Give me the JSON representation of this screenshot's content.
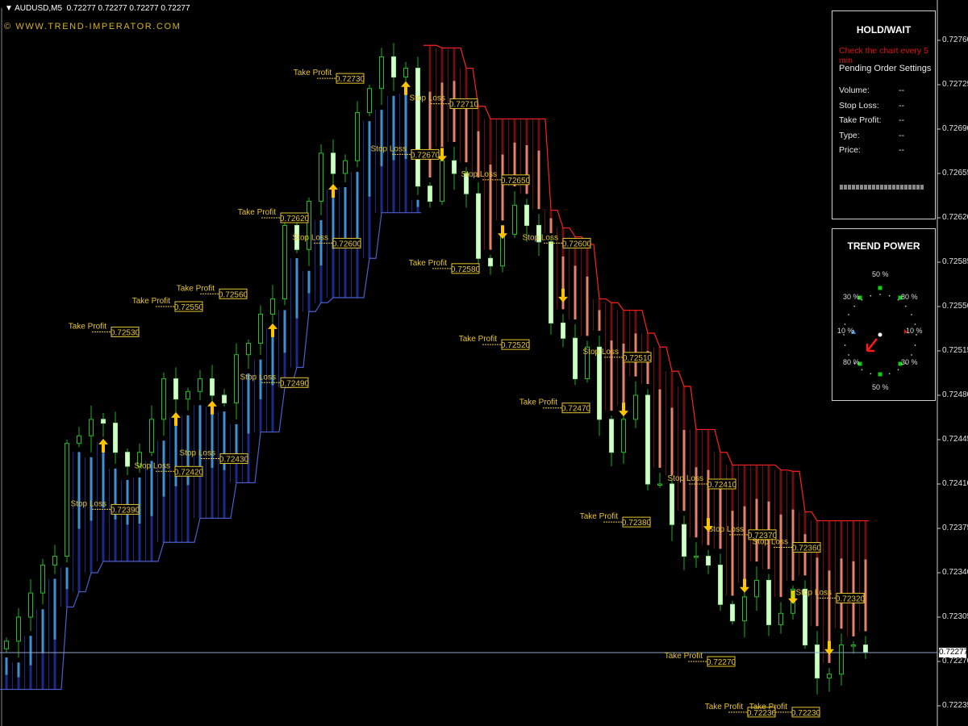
{
  "header": {
    "symbol_line": "AUDUSD,M5  0.72277 0.72277 0.72277 0.72277",
    "watermark": "© WWW.TREND-IMPERATOR.COM"
  },
  "signal_panel": {
    "title": "HOLD/WAIT",
    "notice": "Check the chart every 5 min",
    "section": "Pending Order Settings",
    "fields": [
      {
        "label": "Volume:",
        "value": "--"
      },
      {
        "label": "Stop Loss:",
        "value": "--"
      },
      {
        "label": "Take Profit:",
        "value": "--"
      },
      {
        "label": "Type:",
        "value": "--"
      },
      {
        "label": "Price:",
        "value": "--"
      }
    ],
    "notice_color": "#e01010"
  },
  "trend_power": {
    "title": "TREND POWER",
    "labels": [
      "50 %",
      "80 %",
      "10 %",
      "30 %",
      "50 %",
      "80 %",
      "10 %",
      "30 %"
    ],
    "direction": "down-left",
    "arrow_color": "#ff1a1a"
  },
  "price_axis": {
    "labels": [
      "0.72760",
      "0.72725",
      "0.72690",
      "0.72655",
      "0.72620",
      "0.72585",
      "0.72550",
      "0.72515",
      "0.72480",
      "0.72445",
      "0.72410",
      "0.72375",
      "0.72340",
      "0.72305",
      "0.72270",
      "0.72235"
    ],
    "current_price": "0.72277"
  },
  "chart_data": {
    "type": "candlestick",
    "symbol": "AUDUSD",
    "timeframe": "M5",
    "ylim": [
      0.7222,
      0.7277
    ],
    "close": [
      0.72286,
      0.72305,
      0.72324,
      0.72346,
      0.72353,
      0.72442,
      0.72448,
      0.72461,
      0.72458,
      0.72435,
      0.72424,
      0.72435,
      0.72461,
      0.72493,
      0.72477,
      0.72483,
      0.72493,
      0.7248,
      0.72474,
      0.72512,
      0.72521,
      0.72544,
      0.72556,
      0.72614,
      0.72595,
      0.72633,
      0.72671,
      0.72655,
      0.72665,
      0.72703,
      0.72722,
      0.72747,
      0.72731,
      0.72738,
      0.72645,
      0.72633,
      0.72665,
      0.72655,
      0.72639,
      0.72588,
      0.72582,
      0.72607,
      0.7263,
      0.72614,
      0.72601,
      0.72537,
      0.72525,
      0.72493,
      0.72518,
      0.72461,
      0.72435,
      0.72461,
      0.7248,
      0.7241,
      0.7241,
      0.72378,
      0.72353,
      0.72353,
      0.72346,
      0.72315,
      0.72302,
      0.72321,
      0.72334,
      0.72299,
      0.72308,
      0.72327,
      0.72283,
      0.72257,
      0.7226,
      0.72283,
      0.72283,
      0.72277
    ],
    "support_band": [
      0.72248,
      0.72248,
      0.72248,
      0.72248,
      0.72248,
      0.72313,
      0.72325,
      0.7234,
      0.72349,
      0.72349,
      0.72349,
      0.72349,
      0.72349,
      0.72364,
      0.72364,
      0.72364,
      0.72383,
      0.72383,
      0.72383,
      0.72411,
      0.72411,
      0.72451,
      0.72451,
      0.72486,
      0.72502,
      0.72546,
      0.72553,
      0.72557,
      0.72557,
      0.72557,
      0.72588,
      0.72624,
      0.72624,
      0.72624,
      0.72624,
      null,
      null,
      null,
      null,
      null,
      null,
      null,
      null,
      null,
      null,
      null,
      null,
      null,
      null,
      null,
      null,
      null,
      null,
      null,
      null,
      null,
      null,
      null,
      null,
      null,
      null,
      null,
      null,
      null,
      null,
      null,
      null,
      null,
      null,
      null,
      null,
      null
    ],
    "resistance_band": [
      null,
      null,
      null,
      null,
      null,
      null,
      null,
      null,
      null,
      null,
      null,
      null,
      null,
      null,
      null,
      null,
      null,
      null,
      null,
      null,
      null,
      null,
      null,
      null,
      null,
      null,
      null,
      null,
      null,
      null,
      null,
      null,
      null,
      null,
      null,
      0.72756,
      0.72754,
      0.72754,
      0.72738,
      0.72708,
      0.72698,
      0.72698,
      0.72698,
      0.72698,
      0.72698,
      0.72626,
      0.72612,
      0.72605,
      0.72599,
      0.72556,
      0.72553,
      0.72547,
      0.72547,
      0.72529,
      0.72518,
      0.72499,
      0.72487,
      0.72453,
      0.72453,
      0.72435,
      0.72425,
      0.72425,
      0.72425,
      0.72425,
      0.72421,
      0.7242,
      0.72388,
      0.72381,
      0.72381,
      0.72381,
      0.72381,
      0.72381
    ],
    "support_color": "#3f8fd6",
    "resistance_color": "#e8806a",
    "arrows": [
      {
        "bar": 8,
        "dir": "up",
        "price": 0.7244
      },
      {
        "bar": 14,
        "dir": "up",
        "price": 0.72461
      },
      {
        "bar": 17,
        "dir": "up",
        "price": 0.7247
      },
      {
        "bar": 22,
        "dir": "up",
        "price": 0.72531
      },
      {
        "bar": 27,
        "dir": "up",
        "price": 0.72641
      },
      {
        "bar": 33,
        "dir": "up",
        "price": 0.72722
      },
      {
        "bar": 36,
        "dir": "down",
        "price": 0.7267
      },
      {
        "bar": 41,
        "dir": "down",
        "price": 0.72609
      },
      {
        "bar": 46,
        "dir": "down",
        "price": 0.72559
      },
      {
        "bar": 51,
        "dir": "down",
        "price": 0.72469
      },
      {
        "bar": 58,
        "dir": "down",
        "price": 0.72378
      },
      {
        "bar": 61,
        "dir": "down",
        "price": 0.7233
      },
      {
        "bar": 65,
        "dir": "down",
        "price": 0.72321
      },
      {
        "bar": 68,
        "dir": "down",
        "price": 0.72281
      }
    ],
    "levels": [
      {
        "label": "Take Profit",
        "value": "0.72730"
      },
      {
        "label": "Stop Loss",
        "value": "0.72710"
      },
      {
        "label": "Stop Loss",
        "value": "0.72670"
      },
      {
        "label": "Stop Loss",
        "value": "0.72650"
      },
      {
        "label": "Take Profit",
        "value": "0.72620"
      },
      {
        "label": "Stop Loss",
        "value": "0.72600"
      },
      {
        "label": "Stop Loss",
        "value": "0.72600"
      },
      {
        "label": "Take Profit",
        "value": "0.72580"
      },
      {
        "label": "Take Profit",
        "value": "0.72560"
      },
      {
        "label": "Take Profit",
        "value": "0.72550"
      },
      {
        "label": "Take Profit",
        "value": "0.72530"
      },
      {
        "label": "Take Profit",
        "value": "0.72520"
      },
      {
        "label": "Stop Loss",
        "value": "0.72510"
      },
      {
        "label": "Stop Loss",
        "value": "0.72490"
      },
      {
        "label": "Take Profit",
        "value": "0.72470"
      },
      {
        "label": "Stop Loss",
        "value": "0.72430"
      },
      {
        "label": "Stop Loss",
        "value": "0.72420"
      },
      {
        "label": "Stop Loss",
        "value": "0.72410"
      },
      {
        "label": "Stop Loss",
        "value": "0.72390"
      },
      {
        "label": "Take Profit",
        "value": "0.72380"
      },
      {
        "label": "Stop Loss",
        "value": "0.72370"
      },
      {
        "label": "Stop Loss",
        "value": "0.72360"
      },
      {
        "label": "Stop Loss",
        "value": "0.72320"
      },
      {
        "label": "Take Profit",
        "value": "0.72270"
      },
      {
        "label": "Take Profit",
        "value": "0.72230"
      },
      {
        "label": "Take Profit",
        "value": "0.72230"
      }
    ],
    "label_color": "#e6c530",
    "arrow_color": "#ffc400"
  }
}
